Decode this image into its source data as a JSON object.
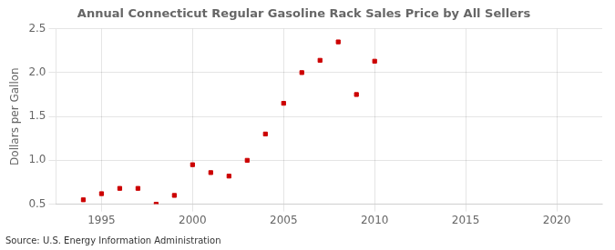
{
  "chart_data": {
    "type": "scatter",
    "title": "Annual Connecticut Regular Gasoline Rack Sales Price by All Sellers",
    "ylabel": "Dollars per Gallon",
    "annotation": "Source: U.S. Energy Information Administration",
    "x": [
      1994,
      1995,
      1996,
      1997,
      1998,
      1999,
      2000,
      2001,
      2002,
      2003,
      2004,
      2005,
      2006,
      2007,
      2008,
      2009,
      2010
    ],
    "values": [
      0.55,
      0.62,
      0.68,
      0.68,
      0.5,
      0.6,
      0.95,
      0.86,
      0.82,
      1.0,
      1.3,
      1.65,
      2.0,
      2.14,
      2.35,
      1.75,
      2.13
    ],
    "color": "#cc0000",
    "marker": "square",
    "xlim": [
      1992.5,
      2022.5
    ],
    "xticks": [
      1995,
      2000,
      2005,
      2010,
      2015,
      2020
    ],
    "ylim": [
      0.5,
      2.5
    ],
    "yticks": [
      0.5,
      {
        "value": 1.0,
        "label": "1.0"
      },
      1.5,
      {
        "value": 2.0,
        "label": "2.0"
      },
      2.5
    ],
    "grid": true
  }
}
